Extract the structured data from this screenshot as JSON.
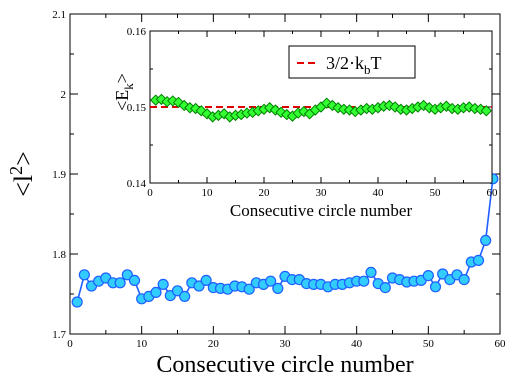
{
  "chart_data": [
    {
      "type": "line",
      "name": "main",
      "xlabel": "Consecutive circle number",
      "ylabel_base": "<l",
      "ylabel_sup": "2",
      "ylabel_end": ">",
      "xlim": [
        0,
        60
      ],
      "ylim": [
        1.7,
        2.1
      ],
      "xticks": [
        0,
        10,
        20,
        30,
        40,
        50,
        60
      ],
      "xtick_labels": [
        "0",
        "10",
        "20",
        "30",
        "40",
        "50",
        "60"
      ],
      "yticks": [
        1.7,
        1.8,
        1.9,
        2.0,
        2.1
      ],
      "ytick_labels": [
        "1.7",
        "1.8",
        "1.9",
        "2",
        "2.1"
      ],
      "grid": false,
      "line_color": "#1f5fff",
      "marker_fill": "#33ccff",
      "marker": "circle",
      "series": [
        {
          "x": [
            1,
            2,
            3,
            4,
            5,
            6,
            7,
            8,
            9,
            10,
            11,
            12,
            13,
            14,
            15,
            16,
            17,
            18,
            19,
            20,
            21,
            22,
            23,
            24,
            25,
            26,
            27,
            28,
            29,
            30,
            31,
            32,
            33,
            34,
            35,
            36,
            37,
            38,
            39,
            40,
            41,
            42,
            43,
            44,
            45,
            46,
            47,
            48,
            49,
            50,
            51,
            52,
            53,
            54,
            55,
            56,
            57,
            58,
            59
          ],
          "y": [
            1.74,
            1.774,
            1.76,
            1.766,
            1.77,
            1.764,
            1.764,
            1.774,
            1.767,
            1.744,
            1.747,
            1.752,
            1.762,
            1.748,
            1.754,
            1.747,
            1.764,
            1.76,
            1.767,
            1.758,
            1.757,
            1.756,
            1.76,
            1.759,
            1.756,
            1.764,
            1.762,
            1.766,
            1.757,
            1.772,
            1.768,
            1.768,
            1.763,
            1.762,
            1.762,
            1.759,
            1.762,
            1.762,
            1.764,
            1.766,
            1.766,
            1.777,
            1.763,
            1.758,
            1.77,
            1.768,
            1.765,
            1.766,
            1.767,
            1.773,
            1.759,
            1.775,
            1.768,
            1.774,
            1.768,
            1.79,
            1.792,
            1.817,
            1.894
          ]
        }
      ]
    },
    {
      "type": "line",
      "name": "inset",
      "xlabel": "Consecutive circle number",
      "ylabel_base": "<E",
      "ylabel_sub": "k",
      "ylabel_end": ">",
      "xlim": [
        0,
        60
      ],
      "ylim": [
        0.14,
        0.16
      ],
      "xticks": [
        0,
        10,
        20,
        30,
        40,
        50,
        60
      ],
      "xtick_labels": [
        "0",
        "10",
        "20",
        "30",
        "40",
        "50",
        "60"
      ],
      "yticks": [
        0.14,
        0.15,
        0.16
      ],
      "ytick_labels": [
        "0.14",
        "0.15",
        "0.16"
      ],
      "grid": false,
      "line_color": "#008000",
      "marker_fill": "#33ff33",
      "marker": "diamond",
      "reference_line": {
        "y": 0.15,
        "color": "#e00000",
        "style": "dashed"
      },
      "legend": {
        "position": "top-right",
        "entry": "3/2·k",
        "entry_sub": "b",
        "entry_end": "T"
      },
      "series": [
        {
          "x": [
            1,
            2,
            3,
            4,
            5,
            6,
            7,
            8,
            9,
            10,
            11,
            12,
            13,
            14,
            15,
            16,
            17,
            18,
            19,
            20,
            21,
            22,
            23,
            24,
            25,
            26,
            27,
            28,
            29,
            30,
            31,
            32,
            33,
            34,
            35,
            36,
            37,
            38,
            39,
            40,
            41,
            42,
            43,
            44,
            45,
            46,
            47,
            48,
            49,
            50,
            51,
            52,
            53,
            54,
            55,
            56,
            57,
            58,
            59
          ],
          "y": [
            0.1509,
            0.151,
            0.1507,
            0.1508,
            0.1506,
            0.1502,
            0.1499,
            0.1498,
            0.1495,
            0.1491,
            0.1487,
            0.1489,
            0.1491,
            0.1487,
            0.1489,
            0.149,
            0.1492,
            0.1493,
            0.1495,
            0.1497,
            0.1499,
            0.1496,
            0.1493,
            0.149,
            0.1488,
            0.1492,
            0.1494,
            0.1491,
            0.1496,
            0.15,
            0.1505,
            0.1502,
            0.1499,
            0.1497,
            0.1496,
            0.1494,
            0.1496,
            0.1498,
            0.1497,
            0.1499,
            0.1501,
            0.1502,
            0.15,
            0.1497,
            0.1496,
            0.1498,
            0.15,
            0.1502,
            0.1499,
            0.1497,
            0.1499,
            0.1501,
            0.1498,
            0.1497,
            0.1499,
            0.15,
            0.1498,
            0.1497,
            0.1495
          ]
        }
      ]
    }
  ]
}
